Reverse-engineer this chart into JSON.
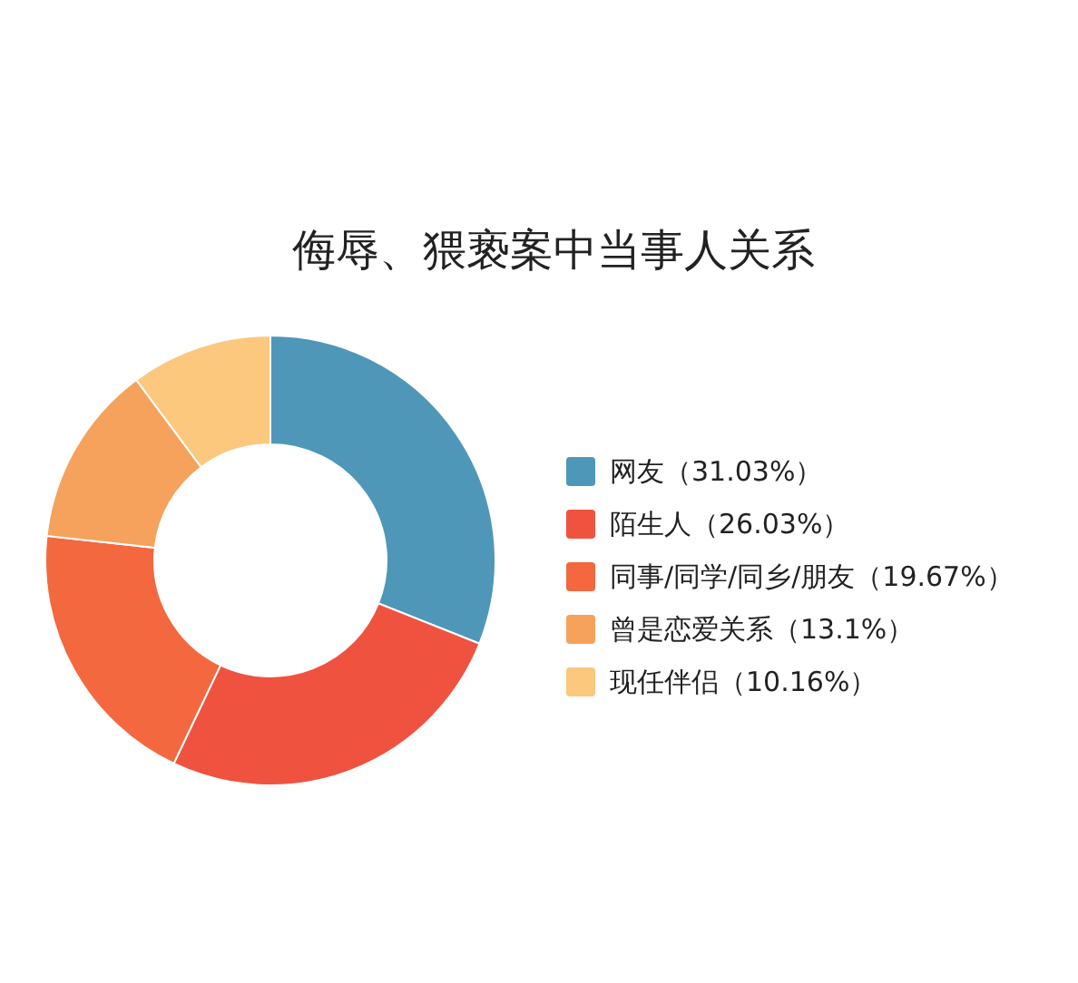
{
  "chart_data": {
    "type": "donut",
    "title": "侮辱、猥亵案中当事人关系",
    "categories": [
      "网友（31.03%）",
      "陌生人（26.03%）",
      "同事/同学/同乡/朋友（19.67%）",
      "曾是恋爱关系（13.1%）",
      "现任伴侣（10.16%）"
    ],
    "values": [
      31.03,
      26.03,
      19.67,
      13.1,
      10.16
    ],
    "colors": [
      "#4f97b9",
      "#ef5340",
      "#f3683f",
      "#f6a25c",
      "#fcc87e"
    ],
    "legend": "right"
  }
}
